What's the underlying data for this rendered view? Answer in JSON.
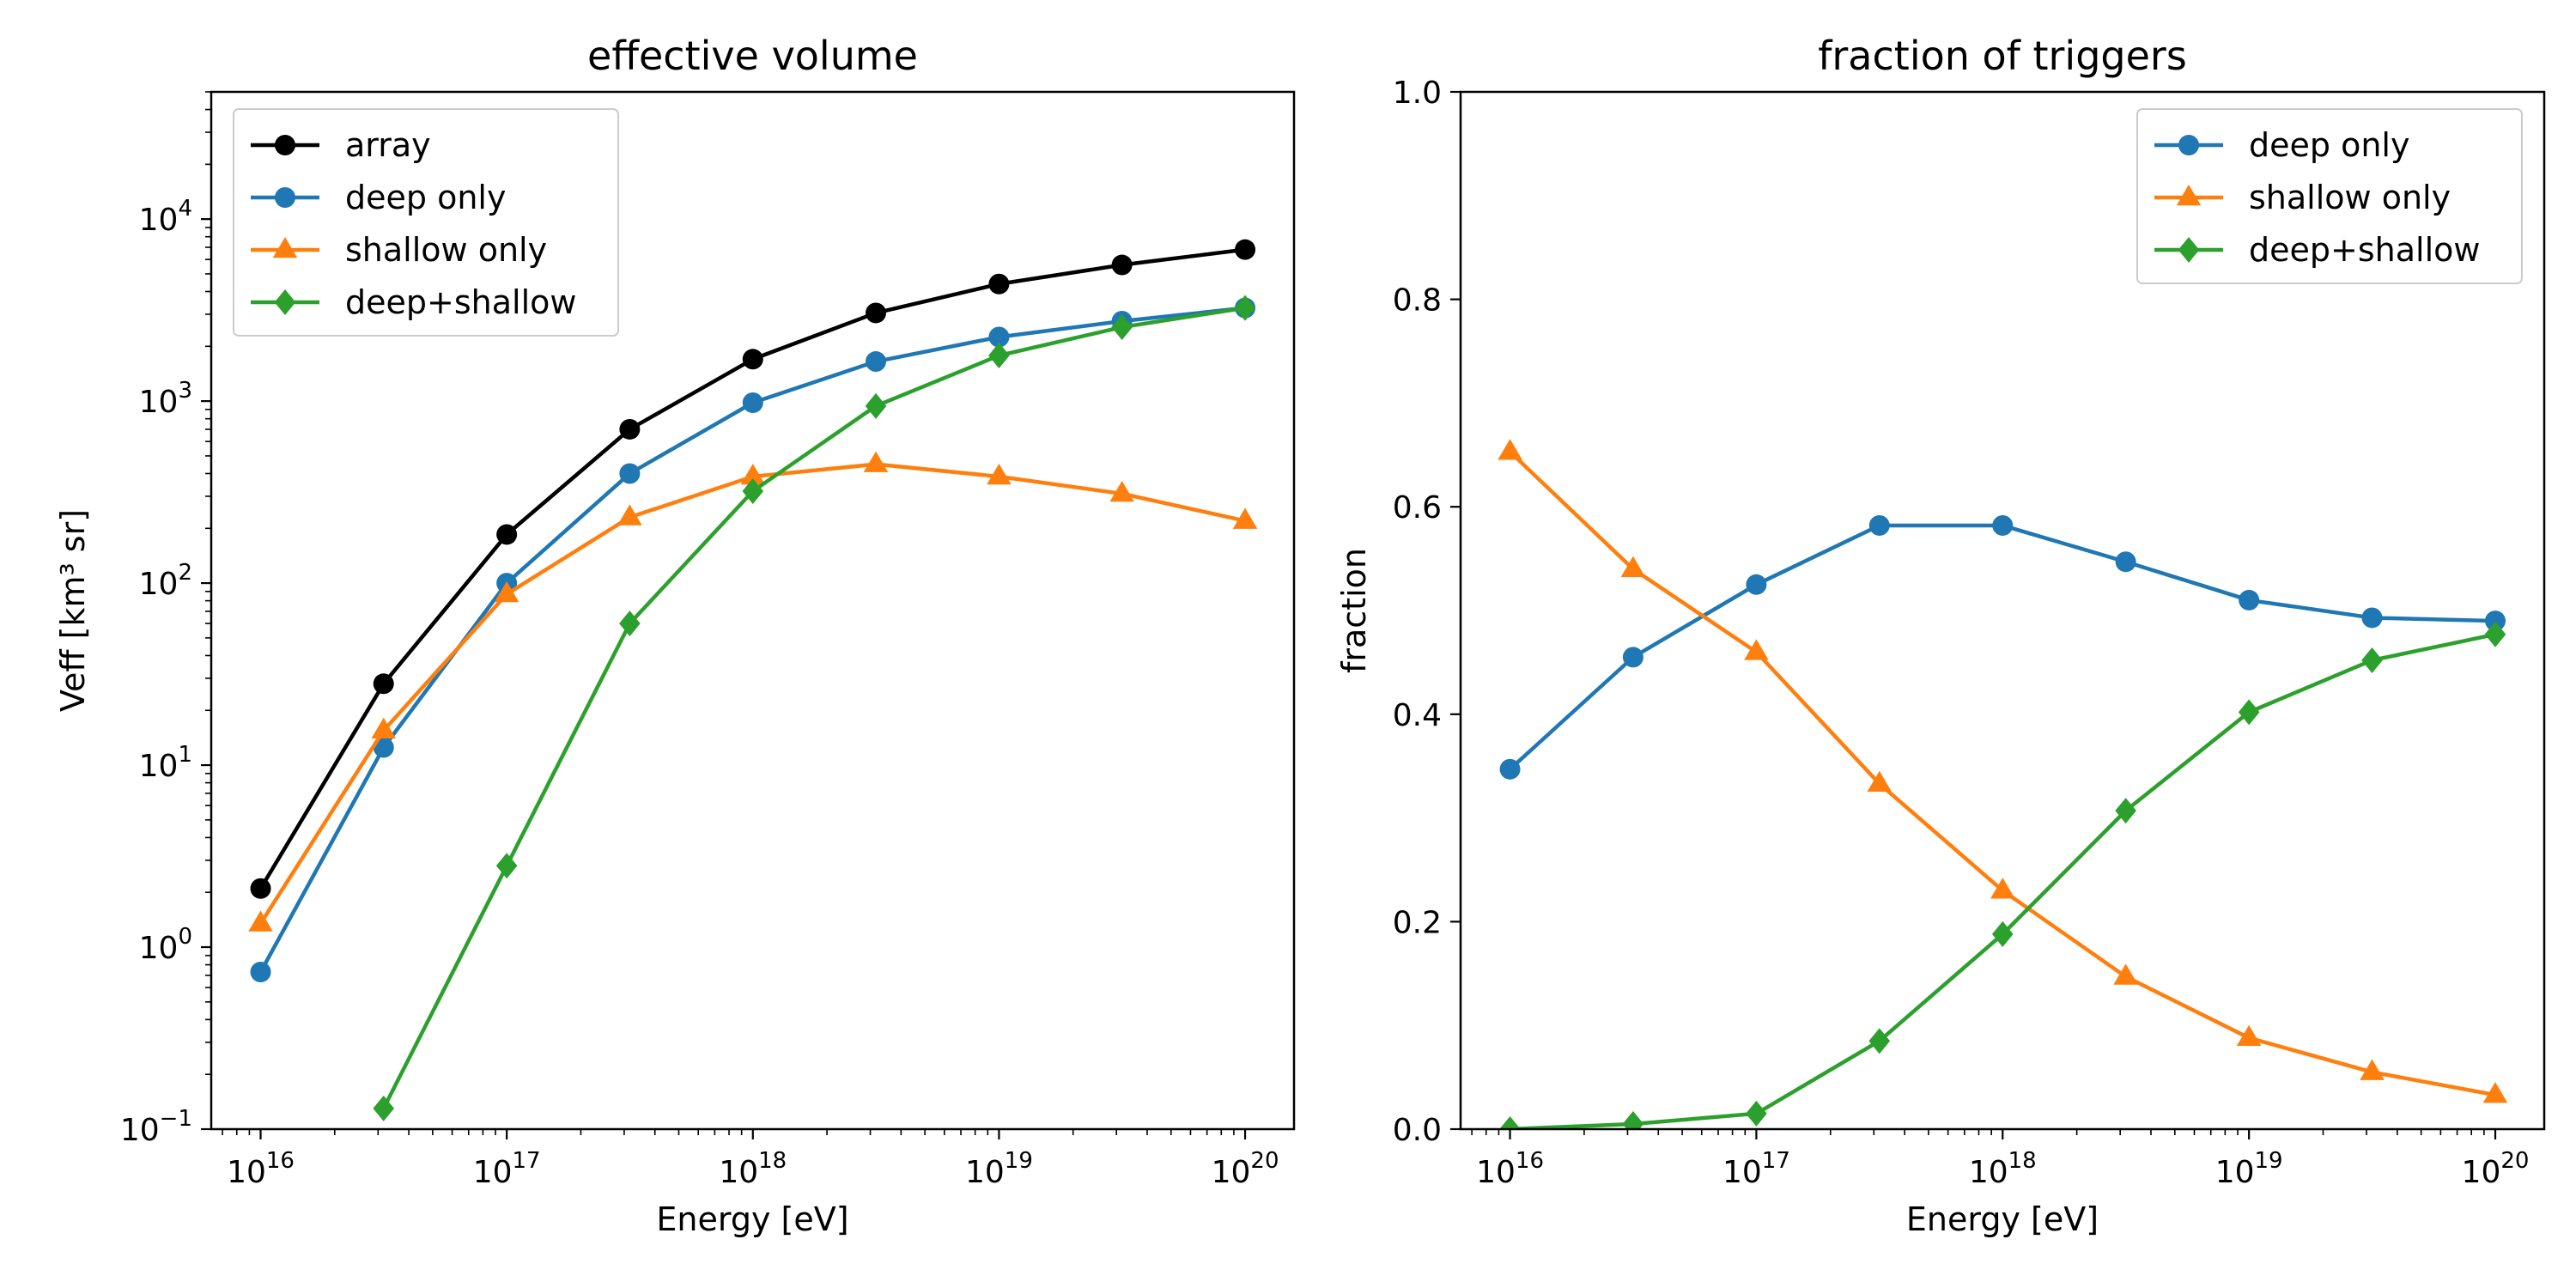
{
  "chart_data": [
    {
      "type": "line",
      "title": "effective volume",
      "xlabel": "Energy [eV]",
      "ylabel": "Veff [km³ sr]",
      "xscale": "log",
      "yscale": "log",
      "xlim": [
        6300000000000000.0,
        1.58e+20
      ],
      "ylim": [
        0.1,
        50000
      ],
      "xticks": [
        {
          "base": "10",
          "exp": "16"
        },
        {
          "base": "10",
          "exp": "17"
        },
        {
          "base": "10",
          "exp": "18"
        },
        {
          "base": "10",
          "exp": "19"
        },
        {
          "base": "10",
          "exp": "20"
        }
      ],
      "yticks": [
        {
          "base": "10",
          "exp": "−1"
        },
        {
          "base": "10",
          "exp": "0"
        },
        {
          "base": "10",
          "exp": "1"
        },
        {
          "base": "10",
          "exp": "2"
        },
        {
          "base": "10",
          "exp": "3"
        },
        {
          "base": "10",
          "exp": "4"
        }
      ],
      "legend_position": "upper-left",
      "x": [
        1e+16,
        3.16e+16,
        1e+17,
        3.16e+17,
        1e+18,
        3.16e+18,
        1e+19,
        3.16e+19,
        1e+20
      ],
      "series": [
        {
          "name": "array",
          "color": "#000000",
          "marker": "circle",
          "values": [
            2.1,
            28,
            185,
            700,
            1700,
            3050,
            4400,
            5600,
            6800
          ]
        },
        {
          "name": "deep only",
          "color": "#1f77b4",
          "marker": "circle",
          "values": [
            0.73,
            12.5,
            100,
            400,
            980,
            1650,
            2250,
            2750,
            3250
          ]
        },
        {
          "name": "shallow only",
          "color": "#ff7f0e",
          "marker": "triangle",
          "values": [
            1.35,
            15.5,
            87,
            230,
            385,
            450,
            385,
            310,
            220
          ]
        },
        {
          "name": "deep+shallow",
          "color": "#2ca02c",
          "marker": "diamond",
          "values": [
            null,
            0.13,
            2.8,
            60,
            320,
            940,
            1780,
            2550,
            3250
          ]
        }
      ]
    },
    {
      "type": "line",
      "title": "fraction of triggers",
      "xlabel": "Energy [eV]",
      "ylabel": "fraction",
      "xscale": "log",
      "yscale": "linear",
      "xlim": [
        6300000000000000.0,
        1.58e+20
      ],
      "ylim": [
        0,
        1
      ],
      "xticks": [
        {
          "base": "10",
          "exp": "16"
        },
        {
          "base": "10",
          "exp": "17"
        },
        {
          "base": "10",
          "exp": "18"
        },
        {
          "base": "10",
          "exp": "19"
        },
        {
          "base": "10",
          "exp": "20"
        }
      ],
      "yticks": [
        "0.0",
        "0.2",
        "0.4",
        "0.6",
        "0.8",
        "1.0"
      ],
      "legend_position": "upper-right",
      "x": [
        1e+16,
        3.16e+16,
        1e+17,
        3.16e+17,
        1e+18,
        3.16e+18,
        1e+19,
        3.16e+19,
        1e+20
      ],
      "series": [
        {
          "name": "deep only",
          "color": "#1f77b4",
          "marker": "circle",
          "values": [
            0.347,
            0.455,
            0.525,
            0.582,
            0.582,
            0.547,
            0.51,
            0.493,
            0.49
          ]
        },
        {
          "name": "shallow only",
          "color": "#ff7f0e",
          "marker": "triangle",
          "values": [
            0.653,
            0.54,
            0.46,
            0.333,
            0.23,
            0.147,
            0.088,
            0.055,
            0.033
          ]
        },
        {
          "name": "deep+shallow",
          "color": "#2ca02c",
          "marker": "diamond",
          "values": [
            0.0,
            0.005,
            0.015,
            0.085,
            0.188,
            0.307,
            0.402,
            0.452,
            0.477
          ]
        }
      ]
    }
  ]
}
